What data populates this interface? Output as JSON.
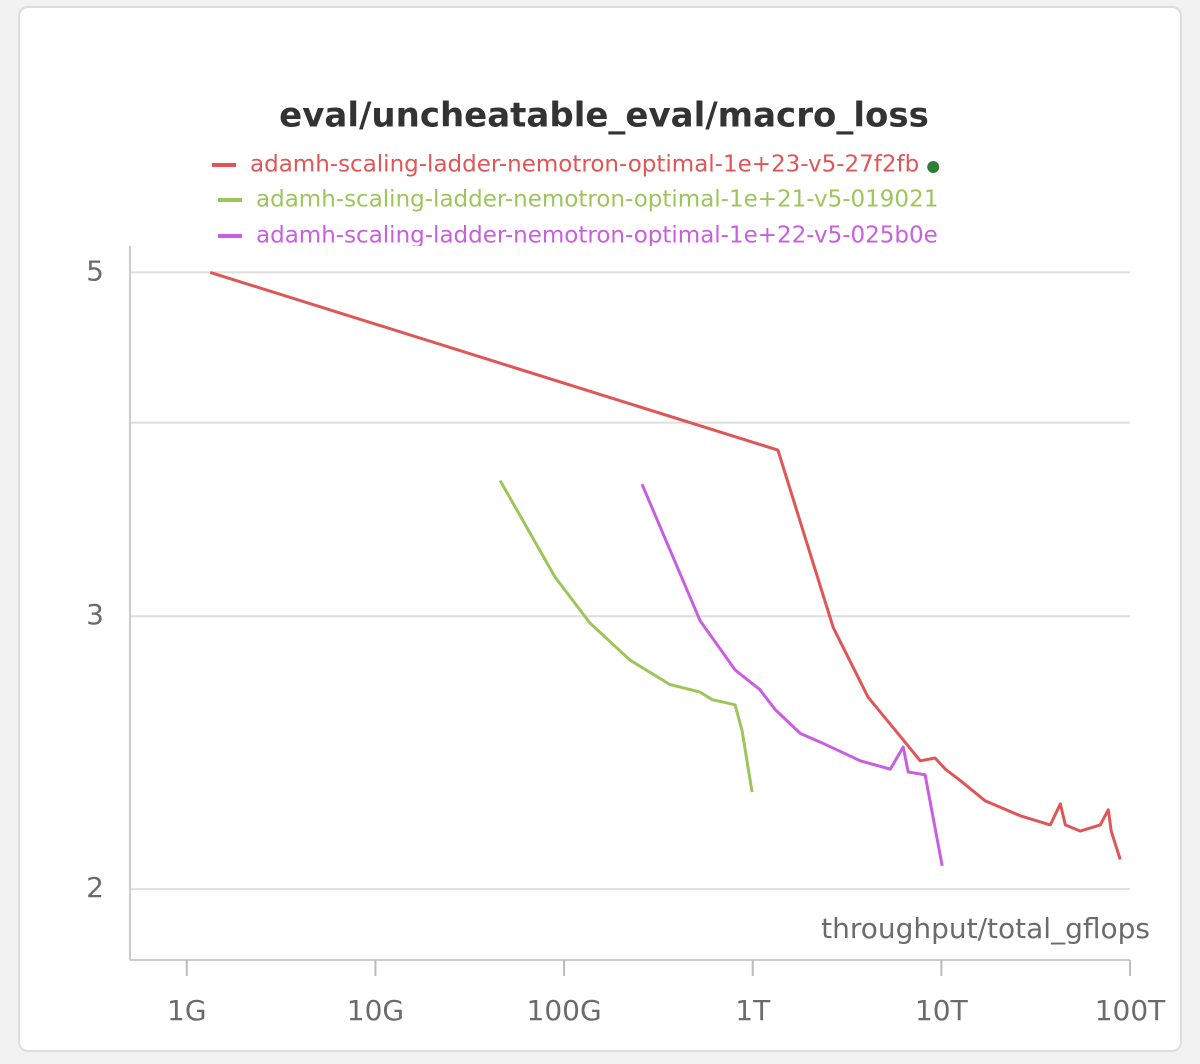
{
  "chart_data": {
    "type": "line",
    "title": "eval/uncheatable_eval/macro_loss",
    "x_label": "throughput/total_gflops",
    "log_x": true,
    "log_y": true,
    "grid": true,
    "legend": "top",
    "xlim": [
      500000000.0,
      100000000000000.0
    ],
    "ylim": [
      1.8,
      5.2
    ],
    "xticks": [
      {
        "value": 1000000000.0,
        "label": "1G"
      },
      {
        "value": 10000000000.0,
        "label": "10G"
      },
      {
        "value": 100000000000.0,
        "label": "100G"
      },
      {
        "value": 1000000000000.0,
        "label": "1T"
      },
      {
        "value": 10000000000000.0,
        "label": "10T"
      },
      {
        "value": 100000000000000.0,
        "label": "100T"
      }
    ],
    "yticks": [
      2,
      3,
      5
    ],
    "ygrid": [
      2,
      3,
      4,
      5
    ],
    "series": [
      {
        "name": "adamh-scaling-ladder-nemotron-optimal-1e+23-v5-27f2fb",
        "color": "#e05656",
        "x": [
          1330000000.0,
          1360000000000.0,
          2670000000000.0,
          4090000000000.0,
          6050000000000.0,
          7720000000000.0,
          9270000000000.0,
          10500000000000.0,
          12600000000000.0,
          17100000000000.0,
          26200000000000.0,
          37800000000000.0,
          42700000000000.0,
          45400000000000.0,
          54500000000000.0,
          69500000000000.0,
          76700000000000.0,
          79500000000000.0,
          88700000000000.0
        ],
        "values": [
          5.0,
          3.84,
          2.95,
          2.66,
          2.51,
          2.42,
          2.43,
          2.39,
          2.35,
          2.28,
          2.23,
          2.2,
          2.27,
          2.2,
          2.18,
          2.2,
          2.25,
          2.18,
          2.09
        ]
      },
      {
        "name": "adamh-scaling-ladder-nemotron-optimal-1e+21-v5-019021",
        "color": "#9cc65a",
        "x": [
          45800000000.0,
          89500000000.0,
          137000000000.0,
          224000000000.0,
          365000000000.0,
          526000000000.0,
          610000000000.0,
          807000000000.0,
          879000000000.0,
          993000000000.0
        ],
        "values": [
          3.67,
          3.18,
          2.97,
          2.81,
          2.71,
          2.68,
          2.65,
          2.63,
          2.53,
          2.31
        ]
      },
      {
        "name": "adamh-scaling-ladder-nemotron-optimal-1e+22-v5-025b0e",
        "color": "#c95ee0",
        "x": [
          259000000000.0,
          526000000000.0,
          807000000000.0,
          1090000000000.0,
          1320000000000.0,
          1790000000000.0,
          2420000000000.0,
          3720000000000.0,
          5360000000000.0,
          6280000000000.0,
          6670000000000.0,
          8200000000000.0,
          10100000000000.0
        ],
        "values": [
          3.65,
          2.98,
          2.77,
          2.69,
          2.61,
          2.52,
          2.48,
          2.42,
          2.39,
          2.47,
          2.38,
          2.37,
          2.07
        ]
      }
    ]
  }
}
